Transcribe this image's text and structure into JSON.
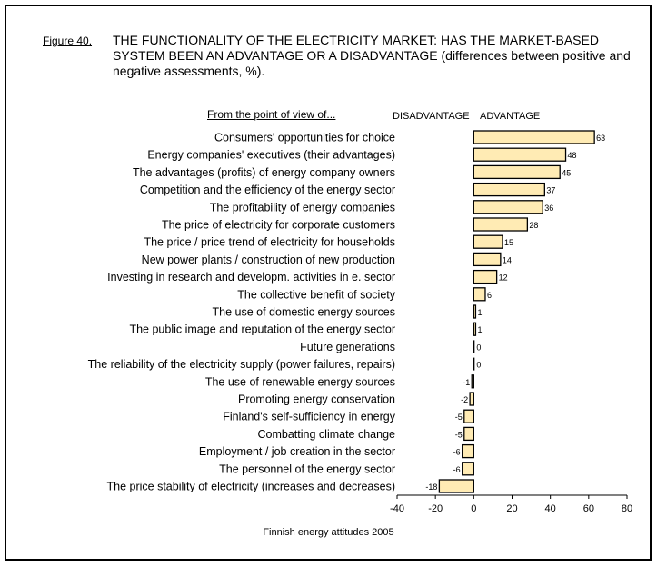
{
  "figure_label": "Figure 40.",
  "title": "THE FUNCTIONALITY OF THE ELECTRICITY MARKET: HAS THE MARKET-BASED SYSTEM BEEN AN ADVANTAGE OR A DISADVANTAGE (differences between positive and negative assessments, %).",
  "header": {
    "from_label": "From the point of view of...",
    "disadvantage": "DISADVANTAGE",
    "advantage": "ADVANTAGE"
  },
  "footer": "Finnish energy attitudes 2005",
  "chart_data": {
    "type": "bar",
    "orientation": "horizontal",
    "categories": [
      "Consumers' opportunities for choice",
      "Energy companies' executives (their advantages)",
      "The advantages (profits) of energy company owners",
      "Competition and the efficiency of the energy sector",
      "The profitability of energy companies",
      "The price of electricity for corporate customers",
      "The price / price trend of electricity for households",
      "New power plants / construction of new production",
      "Investing in research and developm. activities in e. sector",
      "The collective benefit of society",
      "The use of domestic energy sources",
      "The public image and reputation of the energy sector",
      "Future generations",
      "The reliability of the electricity supply (power failures, repairs)",
      "The use of renewable energy sources",
      "Promoting energy conservation",
      "Finland's self-sufficiency in energy",
      "Combatting climate change",
      "Employment / job creation in the sector",
      "The personnel of the energy sector",
      "The price stability of electricity (increases and decreases)"
    ],
    "values": [
      63,
      48,
      45,
      37,
      36,
      28,
      15,
      14,
      12,
      6,
      1,
      1,
      0,
      0,
      -1,
      -2,
      -5,
      -5,
      -6,
      -6,
      -18
    ],
    "labels": [
      "63",
      "48",
      "45",
      "37",
      "36",
      "28",
      "15",
      "14",
      "12",
      "6",
      "1",
      "1",
      "0",
      "0",
      "-1",
      "-2",
      "-5",
      "-5",
      "-6",
      "-6",
      "-18"
    ],
    "xlim": [
      -40,
      80
    ],
    "xticks": [
      -40,
      -20,
      0,
      20,
      40,
      60,
      80
    ],
    "xtick_labels": [
      "-40",
      "-20",
      "0",
      "20",
      "40",
      "60",
      "80"
    ],
    "grid": false,
    "bar_color": "#FFEBB4",
    "edge_color": "#000000"
  }
}
